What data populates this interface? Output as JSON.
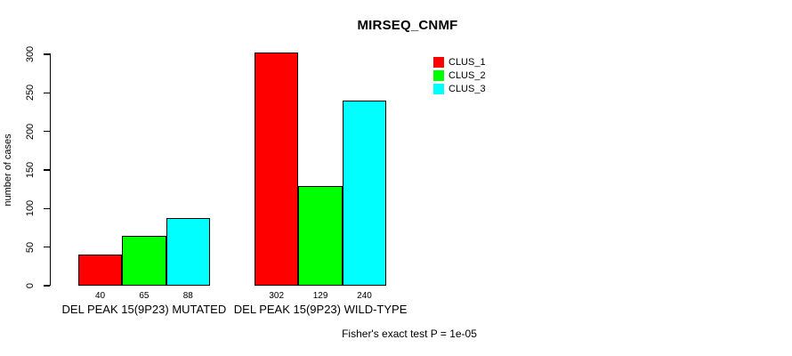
{
  "title": "MIRSEQ_CNMF",
  "footer": "Fisher's exact test P = 1e-05",
  "y_axis": {
    "label": "number of cases",
    "ticks": [
      0,
      50,
      100,
      150,
      200,
      250,
      300
    ],
    "range": [
      0,
      300
    ]
  },
  "legend": {
    "position": "top-right",
    "entries": [
      {
        "label": "CLUS_1",
        "color": "#ff0000"
      },
      {
        "label": "CLUS_2",
        "color": "#00ff00"
      },
      {
        "label": "CLUS_3",
        "color": "#00ffff"
      }
    ]
  },
  "chart_data": {
    "type": "bar",
    "title": "MIRSEQ_CNMF",
    "xlabel": "",
    "ylabel": "number of cases",
    "ylim": [
      0,
      300
    ],
    "yticks": [
      0,
      50,
      100,
      150,
      200,
      250,
      300
    ],
    "grid": false,
    "legend_position": "top-right",
    "categories": [
      "DEL PEAK 15(9P23) MUTATED",
      "DEL PEAK 15(9P23) WILD-TYPE"
    ],
    "series": [
      {
        "name": "CLUS_1",
        "color": "#ff0000",
        "values": [
          40,
          302
        ]
      },
      {
        "name": "CLUS_2",
        "color": "#00ff00",
        "values": [
          65,
          129
        ]
      },
      {
        "name": "CLUS_3",
        "color": "#00ffff",
        "values": [
          88,
          240
        ]
      }
    ],
    "bar_value_labels": [
      [
        40,
        65,
        88
      ],
      [
        302,
        129,
        240
      ]
    ],
    "annotation": "Fisher's exact test P = 1e-05"
  }
}
